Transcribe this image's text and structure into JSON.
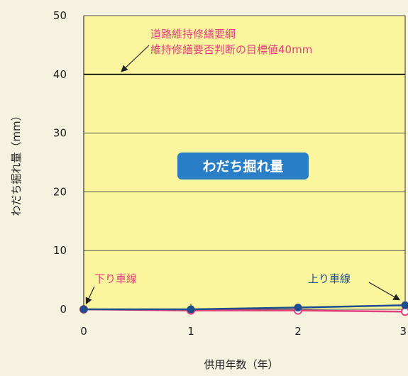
{
  "chart_data": {
    "type": "line",
    "title": "",
    "xlabel": "供用年数（年）",
    "ylabel": "わだち掘れ量（mm）",
    "xlim": [
      0,
      3
    ],
    "ylim": [
      0,
      50
    ],
    "x_ticks": [
      0,
      1,
      2,
      3
    ],
    "y_ticks": [
      0,
      10,
      20,
      30,
      40,
      50
    ],
    "grid": true,
    "plot_label": "わだち掘れ量",
    "reference_line": {
      "y": 40,
      "label_line1": "道路維持修繕要綱",
      "label_line2": "維持修繕要否判断の目標値40mm"
    },
    "series": [
      {
        "name": "上り車線",
        "color": "#1f4e8c",
        "x": [
          0,
          1,
          2,
          3
        ],
        "values": [
          0,
          0,
          0.3,
          0.7
        ]
      },
      {
        "name": "下り車線",
        "color": "#e0407c",
        "x": [
          0,
          1,
          2,
          3
        ],
        "values": [
          0,
          -0.2,
          -0.2,
          -0.4
        ]
      }
    ],
    "colors": {
      "plot_background": "#fbf59d",
      "page_background": "#f5f2df",
      "grid": "#555555",
      "label_box": "#2a7ec8"
    }
  }
}
